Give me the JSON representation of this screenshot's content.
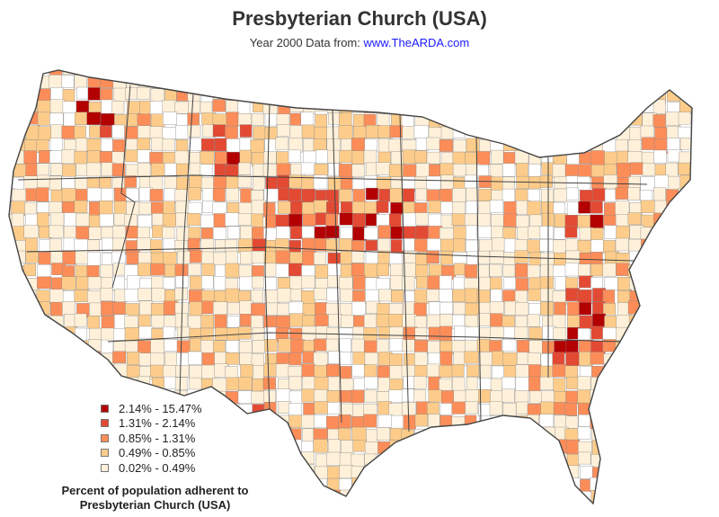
{
  "title": "Presbyterian Church (USA)",
  "subtitle": {
    "prefix": "Year 2000 Data from: ",
    "link_text": "www.TheARDA.com"
  },
  "legend": {
    "title_line1": "Percent of population adherent to",
    "title_line2": "Presbyterian Church (USA)",
    "items": [
      {
        "label": "2.14% - 15.47%",
        "color": "#b30000"
      },
      {
        "label": "1.31% - 2.14%",
        "color": "#e34a33"
      },
      {
        "label": "0.85% - 1.31%",
        "color": "#fc8d59"
      },
      {
        "label": "0.49% - 0.85%",
        "color": "#fdcc8a"
      },
      {
        "label": "0.02% - 0.49%",
        "color": "#fef0d9"
      }
    ]
  },
  "colors": {
    "no_data": "#ffffff",
    "county_border": "#8a8a8a",
    "state_border": "#444444"
  }
}
